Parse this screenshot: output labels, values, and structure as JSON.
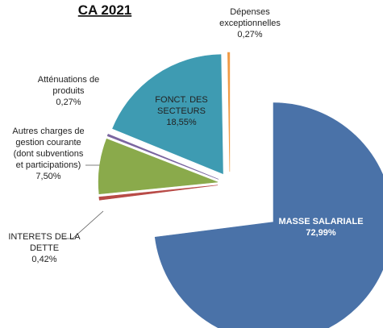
{
  "chart_data": {
    "type": "pie",
    "title": "CA 2021",
    "categories": [
      "MASSE SALARIALE",
      "INTERETS DE LA\nDETTE",
      "Autres charges de\ngestion courante\n(dont subventions\net participations)",
      "Atténuations de\nproduits",
      "FONCT. DES\nSECTEURS",
      "Dépenses\nexceptionnelles"
    ],
    "values": [
      72.99,
      0.42,
      7.5,
      0.27,
      18.55,
      0.27
    ],
    "value_labels": [
      "72,99%",
      "0,42%",
      "7,50%",
      "0,27%",
      "18,55%",
      "0,27%"
    ],
    "colors": [
      "#4a72a8",
      "#b84b47",
      "#8aaa4b",
      "#7b66a0",
      "#3e9bb2",
      "#f09a45"
    ]
  }
}
